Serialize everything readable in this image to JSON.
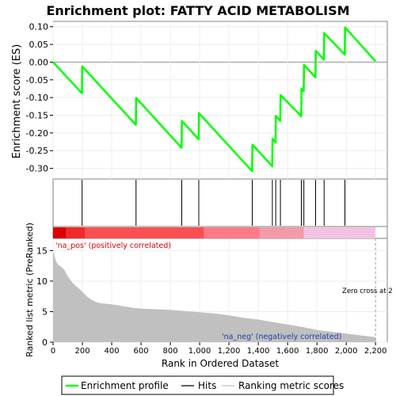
{
  "chart_data": {
    "type": "line",
    "title": "Enrichment plot: FATTY ACID METABOLISM",
    "colors": {
      "enrichment": "#00ff00",
      "hits": "#000000",
      "metric": "#c0c0c0",
      "pos_label": "#e00000",
      "neg_label": "#1f3fa8",
      "zero_line": "#a0a0a0"
    },
    "x_axis": {
      "label": "Rank in Ordered Dataset",
      "range": [
        0,
        2280
      ],
      "ticks": [
        0,
        200,
        400,
        600,
        800,
        1000,
        1200,
        1400,
        1600,
        1800,
        2000,
        2200
      ],
      "tick_labels": [
        "0",
        "200",
        "400",
        "600",
        "800",
        "1,000",
        "1,200",
        "1,400",
        "1,600",
        "1,800",
        "2,000",
        "2,200"
      ]
    },
    "es_panel": {
      "ylabel": "Enrichment score (ES)",
      "ylim": [
        -0.33,
        0.115
      ],
      "ticks": [
        0.1,
        0.05,
        0.0,
        -0.05,
        -0.1,
        -0.15,
        -0.2,
        -0.25,
        -0.3
      ],
      "tick_labels": [
        "0.10",
        "0.05",
        "0.00",
        "-0.05",
        "-0.10",
        "-0.15",
        "-0.20",
        "-0.25",
        "-0.30"
      ],
      "series": {
        "name": "Enrichment profile",
        "x": [
          0,
          197,
          199,
          565,
          567,
          877,
          879,
          993,
          995,
          1358,
          1360,
          1495,
          1497,
          1518,
          1520,
          1550,
          1552,
          1693,
          1695,
          1710,
          1712,
          1790,
          1792,
          1848,
          1850,
          1990,
          1992,
          2200
        ],
        "y": [
          0.0,
          -0.088,
          -0.012,
          -0.177,
          -0.101,
          -0.242,
          -0.166,
          -0.218,
          -0.144,
          -0.308,
          -0.233,
          -0.294,
          -0.216,
          -0.227,
          -0.152,
          -0.166,
          -0.093,
          -0.153,
          -0.075,
          -0.082,
          -0.008,
          -0.043,
          0.032,
          0.007,
          0.082,
          0.021,
          0.098,
          0.002
        ]
      }
    },
    "hits": [
      198,
      566,
      878,
      994,
      1359,
      1496,
      1519,
      1551,
      1694,
      1711,
      1791,
      1849,
      1991
    ],
    "rank_bar": {
      "segments": [
        {
          "from": 0,
          "to": 90,
          "color": "#dc0000"
        },
        {
          "from": 90,
          "to": 220,
          "color": "#ee2a2a"
        },
        {
          "from": 220,
          "to": 1030,
          "color": "#f85050"
        },
        {
          "from": 1030,
          "to": 1410,
          "color": "#ff7a88"
        },
        {
          "from": 1410,
          "to": 1710,
          "color": "#f39aa8"
        },
        {
          "from": 1710,
          "to": 2200,
          "color": "#f3c2e2"
        }
      ]
    },
    "metric_panel": {
      "ylabel": "Ranked list metric (PreRanked)",
      "ylim": [
        0,
        17
      ],
      "ticks": [
        0,
        5,
        10,
        15
      ],
      "tick_labels": [
        "0",
        "5",
        "10",
        "15"
      ],
      "x": [
        0,
        5,
        12,
        20,
        30,
        45,
        60,
        80,
        100,
        115,
        130,
        150,
        170,
        190,
        210,
        230,
        260,
        290,
        320,
        360,
        400,
        450,
        500,
        550,
        600,
        700,
        800,
        900,
        1000,
        1100,
        1200,
        1300,
        1400,
        1500,
        1600,
        1700,
        1800,
        1900,
        2000,
        2100,
        2200
      ],
      "values": [
        15.2,
        14.6,
        13.9,
        13.3,
        12.8,
        12.5,
        12.3,
        11.7,
        10.8,
        10.3,
        9.8,
        9.3,
        8.9,
        8.5,
        8.0,
        7.5,
        7.0,
        6.6,
        6.4,
        6.3,
        6.2,
        6.0,
        5.8,
        5.6,
        5.5,
        5.4,
        5.3,
        5.1,
        4.9,
        4.7,
        4.4,
        4.0,
        3.7,
        3.3,
        2.9,
        2.5,
        2.0,
        1.7,
        1.4,
        1.1,
        0.8
      ],
      "pos_label": "'na_pos' (positively correlated)",
      "neg_label": "'na_neg' (negatively correlated)",
      "zero_cross_label": "Zero cross at 2",
      "zero_cross_x": 2200
    },
    "legend": {
      "placement": "bottom",
      "items": [
        {
          "label": "Enrichment profile",
          "kind": "line",
          "color": "#00ff00"
        },
        {
          "label": "Hits",
          "kind": "line",
          "color": "#606060"
        },
        {
          "label": "Ranking metric scores",
          "kind": "line",
          "color": "#d8d8d8"
        }
      ]
    }
  }
}
